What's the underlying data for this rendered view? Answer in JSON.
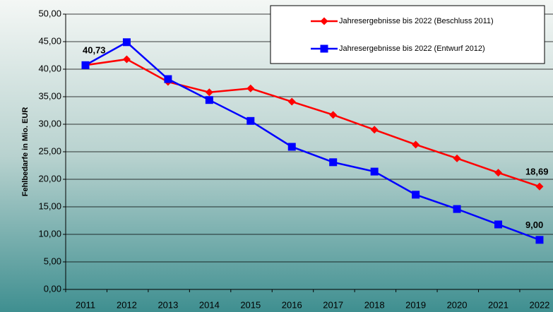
{
  "chart_data": {
    "type": "line",
    "y_label": "Fehlbedarfe in Mio. EUR",
    "categories": [
      "2011",
      "2012",
      "2013",
      "2014",
      "2015",
      "2016",
      "2017",
      "2018",
      "2019",
      "2020",
      "2021",
      "2022"
    ],
    "series": [
      {
        "name": "Jahresergebnisse bis 2022 (Beschluss 2011)",
        "color": "#ff0000",
        "marker": "diamond",
        "values": [
          40.73,
          41.8,
          37.7,
          35.8,
          36.5,
          34.1,
          31.7,
          29.0,
          26.3,
          23.8,
          21.2,
          18.69
        ],
        "value_labels": [
          "40,73",
          null,
          null,
          null,
          null,
          null,
          null,
          null,
          null,
          null,
          null,
          "18,69"
        ]
      },
      {
        "name": "Jahresergebnisse bis 2022 (Entwurf 2012)",
        "color": "#0000ff",
        "marker": "square",
        "values": [
          40.73,
          44.9,
          38.2,
          34.4,
          30.6,
          25.9,
          23.1,
          21.4,
          17.2,
          14.6,
          11.8,
          9.0
        ],
        "value_labels": [
          null,
          null,
          null,
          null,
          null,
          null,
          null,
          null,
          null,
          null,
          null,
          "9,00"
        ]
      }
    ],
    "ylim": [
      0,
      50
    ],
    "yticks": [
      {
        "value": 0,
        "label": "0,00"
      },
      {
        "value": 5,
        "label": "5,00"
      },
      {
        "value": 10,
        "label": "10,00"
      },
      {
        "value": 15,
        "label": "15,00"
      },
      {
        "value": 20,
        "label": "20,00"
      },
      {
        "value": 25,
        "label": "25,00"
      },
      {
        "value": 30,
        "label": "30,00"
      },
      {
        "value": 35,
        "label": "35,00"
      },
      {
        "value": 40,
        "label": "40,00"
      },
      {
        "value": 45,
        "label": "45,00"
      },
      {
        "value": 50,
        "label": "50,00"
      }
    ],
    "grid": true,
    "legend": "top-right"
  }
}
